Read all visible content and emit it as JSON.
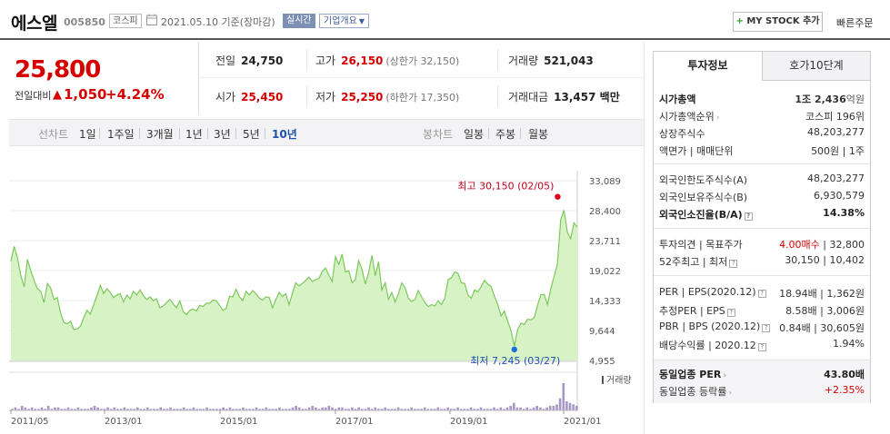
{
  "header": {
    "name": "에스엘",
    "code": "005850",
    "market": "코스피",
    "date": "2021.05.10 기준(장마감)",
    "realtime_label": "실시간",
    "overview_label": "기업개요",
    "mystock_label": "MY STOCK 추가",
    "mystock_plus": "+",
    "quick_order": "빠른주문"
  },
  "price": {
    "current": "25,800",
    "change_label": "전일대비",
    "change_value": "1,050",
    "change_pct": "+4.24%",
    "up_color": "#d60000"
  },
  "summary": {
    "prev_close_label": "전일",
    "prev_close": "24,750",
    "high_label": "고가",
    "high": "26,150",
    "upper_limit": "(상한가 32,150)",
    "volume_label": "거래량",
    "volume": "521,043",
    "open_label": "시가",
    "open": "25,450",
    "low_label": "저가",
    "low": "25,250",
    "lower_limit": "(하한가 17,350)",
    "amount_label": "거래대금",
    "amount": "13,457 백만"
  },
  "period_bar": {
    "line_label": "선차트",
    "periods": [
      "1일",
      "1주일",
      "3개월",
      "1년",
      "3년",
      "5년",
      "10년"
    ],
    "active_period": "10년",
    "candle_label": "봉차트",
    "candles": [
      "일봉",
      "주봉",
      "월봉"
    ]
  },
  "chart_data": {
    "type": "area",
    "y_ticks": [
      "33,089",
      "28,400",
      "23,711",
      "19,022",
      "14,333",
      "9,644",
      "4,955"
    ],
    "ylim": [
      4955,
      33089
    ],
    "x_ticks": [
      "2011/05",
      "2013/01",
      "2015/01",
      "2017/01",
      "2019/01",
      "2021/01"
    ],
    "high_annotation": "최고 30,150 (02/05)",
    "low_annotation": "최저 7,245 (03/27)",
    "high_value": 30150,
    "low_value": 7245,
    "volume_label": "거래량",
    "line_color": "#7cc95b",
    "fill_color": "#d7f3c6",
    "high_marker_color": "#e0001b",
    "low_marker_color": "#1f6fd6",
    "series": [
      {
        "x": "2011/05",
        "values": [
          20500,
          22800,
          21000,
          18200,
          16500,
          20800,
          19000,
          17500,
          16200,
          15800,
          14000,
          17000,
          16300,
          14500,
          14800,
          12400,
          10900,
          10700,
          11100,
          9800,
          9900,
          10300,
          11700,
          12800,
          12200,
          13700,
          15100,
          16700,
          15400,
          16200,
          15600,
          14800,
          15200,
          15400,
          14100,
          15200,
          14600,
          15800,
          15200,
          16000,
          15100,
          14500,
          14900,
          14300,
          14600,
          13200,
          13500,
          14000,
          14500,
          13800,
          13200,
          14300,
          12600,
          12100,
          12800,
          13000,
          12700,
          13600,
          13400,
          13900,
          13900,
          14400,
          14300,
          13600,
          12800,
          13100,
          15000,
          14900,
          16100,
          14900,
          14300,
          15800,
          15200,
          15900,
          15400,
          14700,
          14400,
          14900,
          14800,
          13200,
          14500,
          15600,
          15000,
          15400,
          13700,
          15500,
          17100,
          16600,
          17000,
          17500,
          18000,
          17300,
          17600,
          17800,
          18900,
          19400,
          18300,
          17300,
          21200,
          20000,
          21600,
          18800,
          19000,
          17100,
          17600,
          20600,
          19200,
          16900,
          18700,
          21400,
          18200,
          20400,
          16000,
          17100,
          14500,
          15600,
          14100,
          15400,
          17100,
          16400,
          14700,
          14200,
          14500,
          15900,
          14900,
          14000,
          13400,
          13700,
          13500,
          14300,
          13700,
          14700,
          17600,
          17900,
          18800,
          18600,
          17100,
          17000,
          15200,
          14700,
          16000,
          15700,
          16500,
          17500,
          16900,
          16500,
          15000,
          13700,
          11900,
          12700,
          11100,
          9600,
          7245,
          9800,
          10800,
          10600,
          11400,
          11300,
          11600,
          13600,
          15200,
          15300,
          13700,
          16200,
          18100,
          20000,
          27000,
          28500,
          25000,
          24000,
          26500,
          25800
        ]
      }
    ],
    "volume_values": [
      1,
      2,
      1,
      3,
      2,
      1,
      2,
      1,
      1,
      2,
      1,
      3,
      1,
      2,
      2,
      1,
      1,
      2,
      1,
      1,
      2,
      1,
      1,
      1,
      2,
      3,
      2,
      1,
      1,
      2,
      1,
      2,
      1,
      1,
      2,
      1,
      1,
      1,
      2,
      1,
      1,
      2,
      1,
      1,
      1,
      2,
      1,
      1,
      2,
      1,
      1,
      1,
      2,
      1,
      1,
      2,
      1,
      1,
      1,
      2,
      1,
      1,
      1,
      1,
      2,
      1,
      2,
      1,
      1,
      1,
      2,
      1,
      1,
      1,
      2,
      1,
      1,
      2,
      1,
      1,
      1,
      2,
      1,
      1,
      1,
      2,
      3,
      2,
      1,
      1,
      2,
      3,
      2,
      1,
      2,
      2,
      3,
      2,
      1,
      2,
      2,
      1,
      1,
      2,
      1,
      2,
      1,
      1,
      2,
      1,
      2,
      1,
      1,
      2,
      1,
      1,
      1,
      2,
      1,
      1,
      1,
      2,
      1,
      1,
      1,
      2,
      1,
      1,
      1,
      2,
      1,
      1,
      2,
      1,
      1,
      2,
      1,
      1,
      1,
      2,
      1,
      1,
      2,
      1,
      1,
      1,
      2,
      1,
      2,
      1,
      2,
      3,
      5,
      2,
      2,
      1,
      2,
      1,
      2,
      3,
      2,
      1,
      2,
      3,
      3,
      4,
      8,
      18,
      6,
      5,
      4,
      3
    ]
  },
  "right_panel": {
    "tab_invest": "투자정보",
    "tab_hoga": "호가10단계",
    "market_cap_label": "시가총액",
    "market_cap": "1조 2,436",
    "market_cap_unit": "억원",
    "market_cap_rank_label": "시가총액순위",
    "market_cap_rank": "코스피 196위",
    "shares_label": "상장주식수",
    "shares": "48,203,277",
    "par_label": "액면가 | 매매단위",
    "par": "500원 | 1주",
    "foreign_limit_label": "외국인한도주식수(A)",
    "foreign_limit": "48,203,277",
    "foreign_hold_label": "외국인보유주식수(B)",
    "foreign_hold": "6,930,579",
    "foreign_ratio_label": "외국인소진율(B/A)",
    "foreign_ratio": "14.38%",
    "opinion_label": "투자의견 | 목표주가",
    "opinion": "4.00매수",
    "target": "32,800",
    "range52_label": "52주최고 | 최저",
    "range52": "30,150 | 10,402",
    "per_label": "PER | EPS(2020.12)",
    "per": "18.94배 | 1,362원",
    "est_per_label": "추정PER | EPS",
    "est_per": "8.58배 | 3,006원",
    "pbr_label": "PBR | BPS (2020.12)",
    "pbr": "0.84배 | 30,605원",
    "div_label": "배당수익률 | 2020.12",
    "div": "1.94%",
    "ind_per_label": "동일업종 PER",
    "ind_per": "43.80배",
    "ind_chg_label": "동일업종 등락률",
    "ind_chg": "+2.35%"
  }
}
